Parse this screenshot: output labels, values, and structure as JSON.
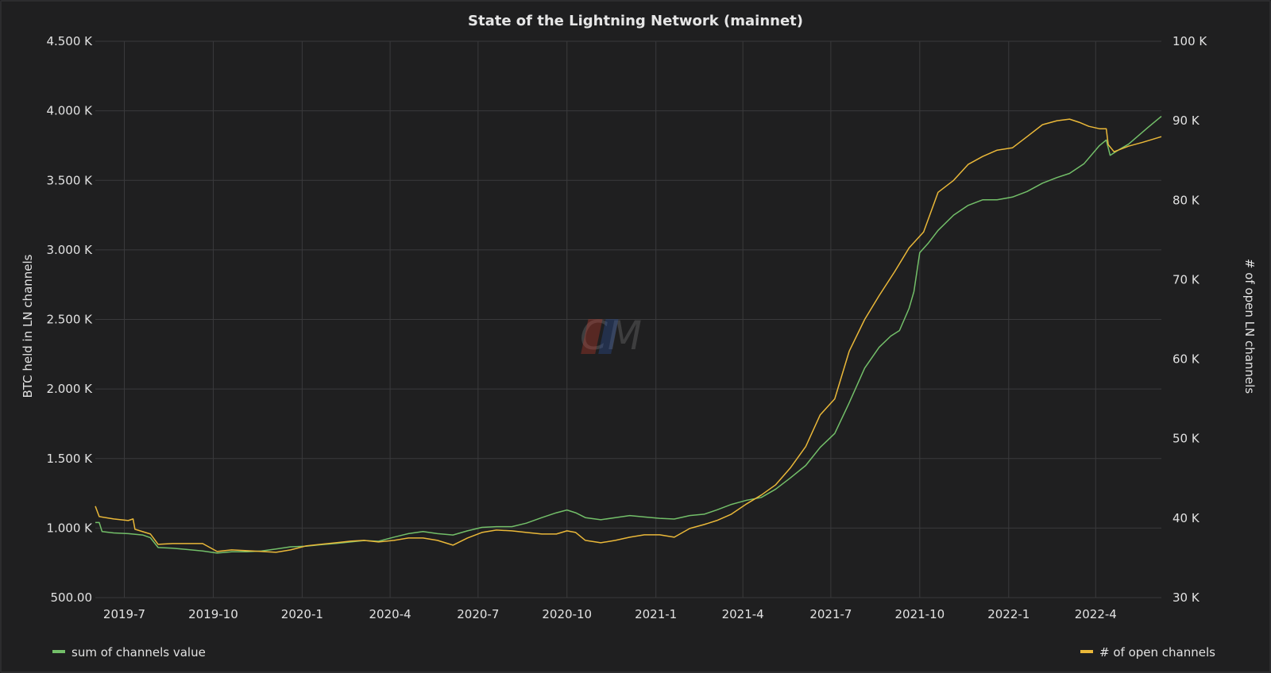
{
  "chart_data": {
    "type": "line",
    "title": "State of the Lightning Network (mainnet)",
    "ylabel_left": "BTC held in LN channels",
    "ylabel_right": "# of open LN channels",
    "y_left_ticks": [
      "500.00",
      "1.000 K",
      "1.500 K",
      "2.000 K",
      "2.500 K",
      "3.000 K",
      "3.500 K",
      "4.000 K",
      "4.500 K"
    ],
    "y_left_range": [
      500,
      4500
    ],
    "y_right_ticks": [
      "30 K",
      "40 K",
      "50 K",
      "60 K",
      "70 K",
      "80 K",
      "90 K",
      "100 K"
    ],
    "y_right_range": [
      30000,
      100000
    ],
    "x_range": [
      "2019-06-01",
      "2022-06-08"
    ],
    "x_ticks": [
      {
        "label": "2019-7",
        "date": "2019-07-01"
      },
      {
        "label": "2019-10",
        "date": "2019-10-01"
      },
      {
        "label": "2020-1",
        "date": "2020-01-01"
      },
      {
        "label": "2020-4",
        "date": "2020-04-01"
      },
      {
        "label": "2020-7",
        "date": "2020-07-01"
      },
      {
        "label": "2020-10",
        "date": "2020-10-01"
      },
      {
        "label": "2021-1",
        "date": "2021-01-01"
      },
      {
        "label": "2021-4",
        "date": "2021-04-01"
      },
      {
        "label": "2021-7",
        "date": "2021-07-01"
      },
      {
        "label": "2021-10",
        "date": "2021-10-01"
      },
      {
        "label": "2022-1",
        "date": "2022-01-01"
      },
      {
        "label": "2022-4",
        "date": "2022-04-01"
      }
    ],
    "grid": true,
    "legend_placement": "bottom",
    "series": [
      {
        "name": "sum of channels value",
        "axis": "left",
        "color": "#73bf69",
        "points": [
          [
            "2019-06-01",
            1040
          ],
          [
            "2019-06-05",
            1040
          ],
          [
            "2019-06-08",
            975
          ],
          [
            "2019-06-20",
            965
          ],
          [
            "2019-07-05",
            960
          ],
          [
            "2019-07-20",
            950
          ],
          [
            "2019-07-28",
            930
          ],
          [
            "2019-08-05",
            860
          ],
          [
            "2019-08-20",
            855
          ],
          [
            "2019-09-05",
            845
          ],
          [
            "2019-09-20",
            835
          ],
          [
            "2019-10-05",
            820
          ],
          [
            "2019-10-20",
            830
          ],
          [
            "2019-11-05",
            830
          ],
          [
            "2019-11-20",
            835
          ],
          [
            "2019-12-05",
            850
          ],
          [
            "2019-12-20",
            865
          ],
          [
            "2020-01-05",
            870
          ],
          [
            "2020-01-20",
            880
          ],
          [
            "2020-02-05",
            890
          ],
          [
            "2020-02-20",
            900
          ],
          [
            "2020-03-05",
            910
          ],
          [
            "2020-03-20",
            905
          ],
          [
            "2020-04-05",
            935
          ],
          [
            "2020-04-20",
            960
          ],
          [
            "2020-05-05",
            975
          ],
          [
            "2020-05-20",
            960
          ],
          [
            "2020-06-05",
            950
          ],
          [
            "2020-06-20",
            980
          ],
          [
            "2020-07-05",
            1005
          ],
          [
            "2020-07-20",
            1010
          ],
          [
            "2020-08-05",
            1010
          ],
          [
            "2020-08-20",
            1035
          ],
          [
            "2020-09-05",
            1075
          ],
          [
            "2020-09-20",
            1110
          ],
          [
            "2020-10-01",
            1130
          ],
          [
            "2020-10-10",
            1110
          ],
          [
            "2020-10-20",
            1075
          ],
          [
            "2020-11-05",
            1060
          ],
          [
            "2020-11-20",
            1075
          ],
          [
            "2020-12-05",
            1090
          ],
          [
            "2020-12-20",
            1080
          ],
          [
            "2021-01-05",
            1070
          ],
          [
            "2021-01-20",
            1065
          ],
          [
            "2021-02-05",
            1090
          ],
          [
            "2021-02-20",
            1100
          ],
          [
            "2021-03-05",
            1130
          ],
          [
            "2021-03-20",
            1170
          ],
          [
            "2021-04-05",
            1200
          ],
          [
            "2021-04-20",
            1220
          ],
          [
            "2021-05-05",
            1280
          ],
          [
            "2021-05-20",
            1360
          ],
          [
            "2021-06-05",
            1450
          ],
          [
            "2021-06-20",
            1580
          ],
          [
            "2021-07-05",
            1680
          ],
          [
            "2021-07-20",
            1900
          ],
          [
            "2021-08-05",
            2150
          ],
          [
            "2021-08-20",
            2300
          ],
          [
            "2021-09-01",
            2380
          ],
          [
            "2021-09-10",
            2420
          ],
          [
            "2021-09-20",
            2580
          ],
          [
            "2021-09-25",
            2700
          ],
          [
            "2021-10-01",
            2980
          ],
          [
            "2021-10-10",
            3050
          ],
          [
            "2021-10-20",
            3140
          ],
          [
            "2021-11-05",
            3250
          ],
          [
            "2021-11-20",
            3320
          ],
          [
            "2021-12-05",
            3360
          ],
          [
            "2021-12-20",
            3360
          ],
          [
            "2022-01-05",
            3380
          ],
          [
            "2022-01-20",
            3420
          ],
          [
            "2022-02-05",
            3480
          ],
          [
            "2022-02-20",
            3520
          ],
          [
            "2022-03-05",
            3550
          ],
          [
            "2022-03-20",
            3620
          ],
          [
            "2022-04-05",
            3750
          ],
          [
            "2022-04-12",
            3790
          ],
          [
            "2022-04-16",
            3680
          ],
          [
            "2022-04-25",
            3720
          ],
          [
            "2022-05-05",
            3760
          ],
          [
            "2022-05-15",
            3820
          ],
          [
            "2022-05-25",
            3880
          ],
          [
            "2022-06-08",
            3960
          ]
        ]
      },
      {
        "name": "# of open channels",
        "axis": "right",
        "color": "#eab839",
        "points": [
          [
            "2019-06-01",
            41500
          ],
          [
            "2019-06-05",
            40200
          ],
          [
            "2019-06-20",
            39900
          ],
          [
            "2019-07-05",
            39700
          ],
          [
            "2019-07-10",
            39900
          ],
          [
            "2019-07-12",
            38600
          ],
          [
            "2019-07-28",
            38000
          ],
          [
            "2019-08-05",
            36700
          ],
          [
            "2019-08-20",
            36800
          ],
          [
            "2019-09-05",
            36800
          ],
          [
            "2019-09-20",
            36800
          ],
          [
            "2019-10-05",
            35800
          ],
          [
            "2019-10-20",
            36000
          ],
          [
            "2019-11-05",
            35900
          ],
          [
            "2019-11-20",
            35800
          ],
          [
            "2019-12-05",
            35700
          ],
          [
            "2019-12-20",
            36000
          ],
          [
            "2020-01-05",
            36500
          ],
          [
            "2020-01-20",
            36700
          ],
          [
            "2020-02-05",
            36900
          ],
          [
            "2020-02-20",
            37100
          ],
          [
            "2020-03-05",
            37200
          ],
          [
            "2020-03-20",
            37000
          ],
          [
            "2020-04-05",
            37200
          ],
          [
            "2020-04-20",
            37500
          ],
          [
            "2020-05-05",
            37500
          ],
          [
            "2020-05-20",
            37200
          ],
          [
            "2020-06-05",
            36600
          ],
          [
            "2020-06-20",
            37500
          ],
          [
            "2020-07-05",
            38200
          ],
          [
            "2020-07-20",
            38500
          ],
          [
            "2020-08-05",
            38400
          ],
          [
            "2020-08-20",
            38200
          ],
          [
            "2020-09-05",
            38000
          ],
          [
            "2020-09-20",
            38000
          ],
          [
            "2020-10-01",
            38400
          ],
          [
            "2020-10-10",
            38200
          ],
          [
            "2020-10-20",
            37200
          ],
          [
            "2020-11-05",
            36900
          ],
          [
            "2020-11-20",
            37200
          ],
          [
            "2020-12-05",
            37600
          ],
          [
            "2020-12-20",
            37900
          ],
          [
            "2021-01-05",
            37900
          ],
          [
            "2021-01-20",
            37600
          ],
          [
            "2021-02-05",
            38700
          ],
          [
            "2021-02-20",
            39200
          ],
          [
            "2021-03-05",
            39700
          ],
          [
            "2021-03-20",
            40500
          ],
          [
            "2021-04-05",
            41800
          ],
          [
            "2021-04-20",
            42900
          ],
          [
            "2021-05-05",
            44200
          ],
          [
            "2021-05-20",
            46300
          ],
          [
            "2021-06-05",
            49000
          ],
          [
            "2021-06-20",
            53000
          ],
          [
            "2021-07-05",
            55000
          ],
          [
            "2021-07-20",
            61000
          ],
          [
            "2021-08-05",
            65000
          ],
          [
            "2021-08-20",
            68000
          ],
          [
            "2021-09-05",
            71000
          ],
          [
            "2021-09-20",
            74000
          ],
          [
            "2021-10-05",
            76000
          ],
          [
            "2021-10-20",
            81000
          ],
          [
            "2021-11-05",
            82500
          ],
          [
            "2021-11-20",
            84500
          ],
          [
            "2021-12-05",
            85500
          ],
          [
            "2021-12-20",
            86300
          ],
          [
            "2022-01-05",
            86600
          ],
          [
            "2022-01-20",
            88000
          ],
          [
            "2022-02-05",
            89500
          ],
          [
            "2022-02-20",
            90000
          ],
          [
            "2022-03-05",
            90200
          ],
          [
            "2022-03-15",
            89800
          ],
          [
            "2022-03-25",
            89300
          ],
          [
            "2022-04-05",
            89000
          ],
          [
            "2022-04-12",
            89000
          ],
          [
            "2022-04-14",
            87000
          ],
          [
            "2022-04-20",
            86100
          ],
          [
            "2022-05-05",
            86800
          ],
          [
            "2022-05-20",
            87300
          ],
          [
            "2022-06-08",
            88000
          ]
        ]
      }
    ]
  }
}
